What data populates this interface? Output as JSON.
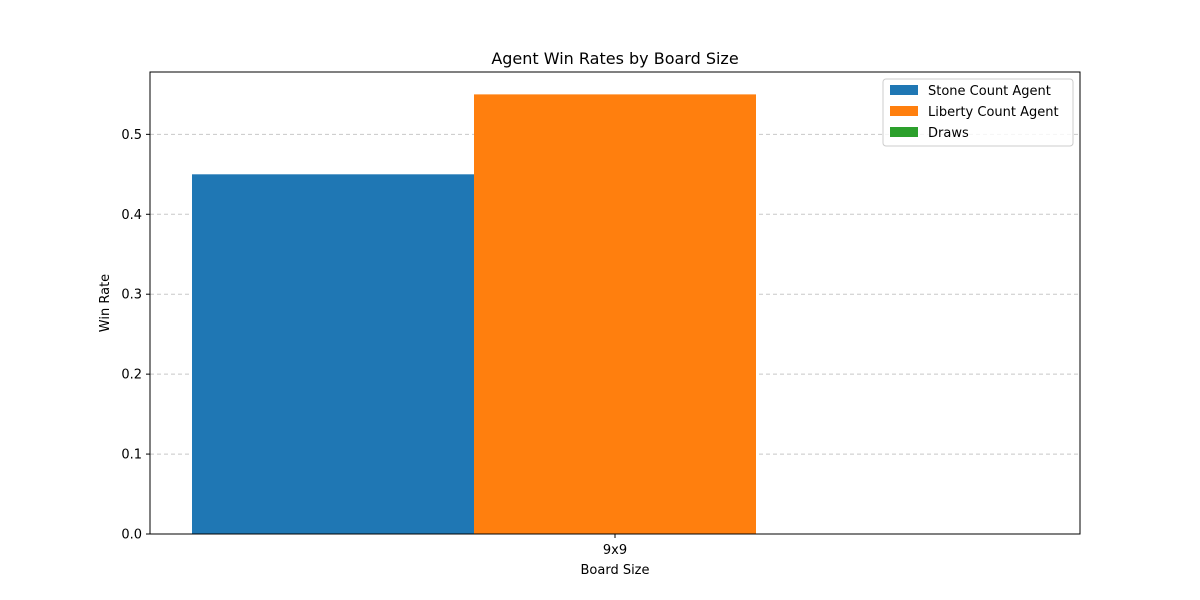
{
  "chart_data": {
    "type": "bar",
    "title": "Agent Win Rates by Board Size",
    "xlabel": "Board Size",
    "ylabel": "Win Rate",
    "categories": [
      "9x9"
    ],
    "series": [
      {
        "name": "Stone Count Agent",
        "values": [
          0.45
        ],
        "color": "#1f77b4"
      },
      {
        "name": "Liberty Count Agent",
        "values": [
          0.55
        ],
        "color": "#ff7f0e"
      },
      {
        "name": "Draws",
        "values": [
          0.0
        ],
        "color": "#2ca02c"
      }
    ],
    "ylim": [
      0,
      0.578
    ],
    "yticks": [
      0.0,
      0.1,
      0.2,
      0.3,
      0.4,
      0.5
    ],
    "ytick_labels": [
      "0.0",
      "0.1",
      "0.2",
      "0.3",
      "0.4",
      "0.5"
    ],
    "grid": "y-dashed",
    "legend_position": "top-right"
  }
}
